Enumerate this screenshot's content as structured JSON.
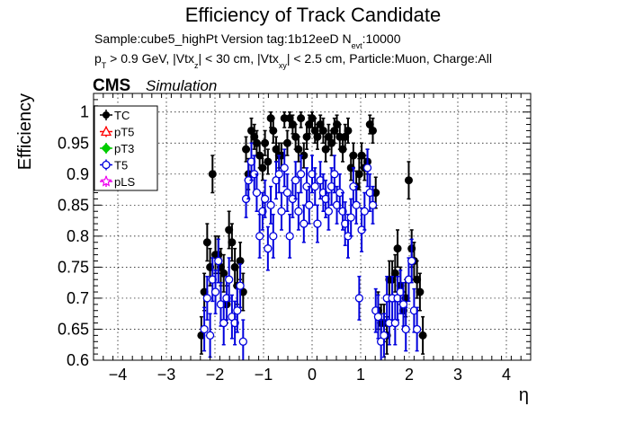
{
  "chart_data": {
    "type": "scatter",
    "title": "Efficiency of Track Candidate",
    "subtitle_line1": {
      "main": "Sample:cube5_highPt   Version tag:1b12eeD  N",
      "sub": "evt",
      "after": ":10000"
    },
    "subtitle_line2": {
      "p": "p",
      "p_sub": "T",
      "a": " > 0.9 GeV, |Vtx",
      "z_sub": "z",
      "b": "| < 30 cm, |Vtx",
      "xy_sub": "xy",
      "c": "| < 2.5 cm, Particle:Muon, Charge:All"
    },
    "cms_label": "CMS",
    "cms_sublabel": "Simulation",
    "xlabel": "η",
    "ylabel": "Efficiency",
    "xlim": [
      -4.5,
      4.5
    ],
    "ylim": [
      0.6,
      1.03
    ],
    "xticks": [
      -4,
      -3,
      -2,
      -1,
      0,
      1,
      2,
      3,
      4
    ],
    "yticks": [
      0.6,
      0.65,
      0.7,
      0.75,
      0.8,
      0.85,
      0.9,
      0.95,
      1
    ],
    "ytick_labels": [
      "0.6",
      "0.65",
      "0.7",
      "0.75",
      "0.8",
      "0.85",
      "0.9",
      "0.95",
      "1"
    ],
    "grid": true,
    "legend_position": "top-left",
    "series": [
      {
        "name": "TC",
        "color": "#000000",
        "marker": "filled-circle",
        "points": [
          [
            -2.28,
            0.64,
            0.03
          ],
          [
            -2.22,
            0.71,
            0.03
          ],
          [
            -2.16,
            0.79,
            0.03
          ],
          [
            -2.1,
            0.75,
            0.03
          ],
          [
            -2.05,
            0.9,
            0.03
          ],
          [
            -1.99,
            0.77,
            0.03
          ],
          [
            -1.93,
            0.77,
            0.03
          ],
          [
            -1.88,
            0.75,
            0.03
          ],
          [
            -1.82,
            0.74,
            0.03
          ],
          [
            -1.76,
            0.69,
            0.03
          ],
          [
            -1.71,
            0.81,
            0.03
          ],
          [
            -1.65,
            0.79,
            0.03
          ],
          [
            -1.59,
            0.75,
            0.03
          ],
          [
            -1.54,
            0.72,
            0.03
          ],
          [
            -1.48,
            0.76,
            0.03
          ],
          [
            -1.42,
            0.71,
            0.03
          ],
          [
            -1.36,
            0.94,
            0.02
          ],
          [
            -1.31,
            0.9,
            0.025
          ],
          [
            -1.25,
            0.97,
            0.02
          ],
          [
            -1.19,
            0.96,
            0.02
          ],
          [
            -1.14,
            0.95,
            0.02
          ],
          [
            -1.08,
            0.93,
            0.02
          ],
          [
            -1.02,
            0.91,
            0.02
          ],
          [
            -0.97,
            0.95,
            0.02
          ],
          [
            -0.91,
            0.92,
            0.02
          ],
          [
            -0.85,
            0.99,
            0.015
          ],
          [
            -0.8,
            0.97,
            0.02
          ],
          [
            -0.74,
            0.94,
            0.02
          ],
          [
            -0.68,
            0.93,
            0.02
          ],
          [
            -0.63,
            0.93,
            0.02
          ],
          [
            -0.57,
            0.99,
            0.015
          ],
          [
            -0.51,
            0.95,
            0.02
          ],
          [
            -0.46,
            0.99,
            0.015
          ],
          [
            -0.4,
            0.98,
            0.015
          ],
          [
            -0.34,
            0.96,
            0.02
          ],
          [
            -0.28,
            0.94,
            0.02
          ],
          [
            -0.23,
            0.99,
            0.015
          ],
          [
            -0.17,
            0.93,
            0.02
          ],
          [
            -0.11,
            0.96,
            0.02
          ],
          [
            -0.06,
            0.98,
            0.015
          ],
          [
            0.0,
            0.99,
            0.015
          ],
          [
            0.06,
            0.97,
            0.02
          ],
          [
            0.11,
            0.96,
            0.02
          ],
          [
            0.17,
            0.98,
            0.015
          ],
          [
            0.23,
            0.97,
            0.02
          ],
          [
            0.28,
            0.94,
            0.02
          ],
          [
            0.34,
            0.96,
            0.02
          ],
          [
            0.4,
            0.95,
            0.02
          ],
          [
            0.46,
            0.97,
            0.02
          ],
          [
            0.51,
            0.98,
            0.015
          ],
          [
            0.57,
            0.96,
            0.02
          ],
          [
            0.63,
            0.94,
            0.02
          ],
          [
            0.68,
            0.96,
            0.02
          ],
          [
            0.74,
            0.97,
            0.02
          ],
          [
            0.8,
            0.91,
            0.02
          ],
          [
            0.85,
            0.93,
            0.02
          ],
          [
            0.91,
            0.88,
            0.025
          ],
          [
            0.97,
            0.9,
            0.025
          ],
          [
            1.02,
            0.93,
            0.02
          ],
          [
            1.08,
            0.91,
            0.02
          ],
          [
            1.14,
            0.92,
            0.02
          ],
          [
            1.19,
            0.98,
            0.015
          ],
          [
            1.25,
            0.97,
            0.02
          ],
          [
            1.31,
            0.87,
            0.025
          ],
          [
            1.36,
            0.68,
            0.03
          ],
          [
            1.42,
            0.66,
            0.03
          ],
          [
            1.48,
            0.66,
            0.03
          ],
          [
            1.54,
            0.64,
            0.03
          ],
          [
            1.59,
            0.73,
            0.03
          ],
          [
            1.65,
            0.73,
            0.03
          ],
          [
            1.71,
            0.74,
            0.03
          ],
          [
            1.76,
            0.78,
            0.03
          ],
          [
            1.82,
            0.72,
            0.03
          ],
          [
            1.88,
            0.68,
            0.03
          ],
          [
            1.93,
            0.7,
            0.03
          ],
          [
            1.99,
            0.89,
            0.03
          ],
          [
            2.05,
            0.78,
            0.03
          ],
          [
            2.1,
            0.76,
            0.03
          ],
          [
            2.16,
            0.73,
            0.03
          ],
          [
            2.22,
            0.71,
            0.03
          ],
          [
            2.28,
            0.64,
            0.03
          ]
        ]
      },
      {
        "name": "pT5",
        "color": "#ff0000",
        "marker": "open-triangle",
        "points": []
      },
      {
        "name": "pT3",
        "color": "#00cc00",
        "marker": "filled-diamond",
        "points": []
      },
      {
        "name": "T5",
        "color": "#0000dd",
        "marker": "open-circle",
        "points": [
          [
            -2.22,
            0.65,
            0.035
          ],
          [
            -2.16,
            0.7,
            0.035
          ],
          [
            -2.1,
            0.64,
            0.035
          ],
          [
            -2.05,
            0.73,
            0.035
          ],
          [
            -1.99,
            0.71,
            0.035
          ],
          [
            -1.93,
            0.76,
            0.035
          ],
          [
            -1.88,
            0.69,
            0.035
          ],
          [
            -1.82,
            0.66,
            0.035
          ],
          [
            -1.76,
            0.7,
            0.035
          ],
          [
            -1.71,
            0.73,
            0.035
          ],
          [
            -1.65,
            0.67,
            0.035
          ],
          [
            -1.59,
            0.66,
            0.035
          ],
          [
            -1.54,
            0.68,
            0.035
          ],
          [
            -1.48,
            0.72,
            0.035
          ],
          [
            -1.42,
            0.63,
            0.035
          ],
          [
            -1.36,
            0.86,
            0.03
          ],
          [
            -1.31,
            0.89,
            0.03
          ],
          [
            -1.25,
            0.92,
            0.03
          ],
          [
            -1.19,
            0.9,
            0.03
          ],
          [
            -1.14,
            0.87,
            0.03
          ],
          [
            -1.08,
            0.8,
            0.035
          ],
          [
            -1.02,
            0.84,
            0.03
          ],
          [
            -0.97,
            0.86,
            0.03
          ],
          [
            -0.91,
            0.78,
            0.035
          ],
          [
            -0.85,
            0.85,
            0.03
          ],
          [
            -0.8,
            0.8,
            0.035
          ],
          [
            -0.74,
            0.89,
            0.03
          ],
          [
            -0.68,
            0.9,
            0.03
          ],
          [
            -0.63,
            0.84,
            0.03
          ],
          [
            -0.57,
            0.91,
            0.03
          ],
          [
            -0.51,
            0.87,
            0.03
          ],
          [
            -0.46,
            0.8,
            0.035
          ],
          [
            -0.4,
            0.86,
            0.03
          ],
          [
            -0.34,
            0.89,
            0.03
          ],
          [
            -0.28,
            0.84,
            0.03
          ],
          [
            -0.23,
            0.9,
            0.03
          ],
          [
            -0.17,
            0.82,
            0.03
          ],
          [
            -0.11,
            0.88,
            0.03
          ],
          [
            -0.06,
            0.85,
            0.03
          ],
          [
            0.0,
            0.9,
            0.03
          ],
          [
            0.06,
            0.88,
            0.03
          ],
          [
            0.11,
            0.82,
            0.03
          ],
          [
            0.17,
            0.89,
            0.03
          ],
          [
            0.23,
            0.87,
            0.03
          ],
          [
            0.28,
            0.86,
            0.03
          ],
          [
            0.34,
            0.84,
            0.03
          ],
          [
            0.4,
            0.88,
            0.03
          ],
          [
            0.46,
            0.9,
            0.03
          ],
          [
            0.51,
            0.85,
            0.03
          ],
          [
            0.57,
            0.87,
            0.03
          ],
          [
            0.63,
            0.84,
            0.03
          ],
          [
            0.68,
            0.82,
            0.035
          ],
          [
            0.74,
            0.8,
            0.035
          ],
          [
            0.8,
            0.83,
            0.03
          ],
          [
            0.85,
            0.88,
            0.03
          ],
          [
            0.91,
            0.85,
            0.03
          ],
          [
            0.97,
            0.7,
            0.035
          ],
          [
            1.02,
            0.81,
            0.035
          ],
          [
            1.08,
            0.84,
            0.03
          ],
          [
            1.14,
            0.91,
            0.03
          ],
          [
            1.19,
            0.87,
            0.03
          ],
          [
            1.25,
            0.85,
            0.03
          ],
          [
            1.31,
            0.68,
            0.035
          ],
          [
            1.36,
            0.67,
            0.035
          ],
          [
            1.42,
            0.63,
            0.035
          ],
          [
            1.48,
            0.64,
            0.035
          ],
          [
            1.54,
            0.7,
            0.035
          ],
          [
            1.59,
            0.66,
            0.035
          ],
          [
            1.65,
            0.7,
            0.035
          ],
          [
            1.71,
            0.66,
            0.035
          ],
          [
            1.76,
            0.7,
            0.035
          ],
          [
            1.82,
            0.71,
            0.035
          ],
          [
            1.88,
            0.69,
            0.035
          ],
          [
            1.93,
            0.65,
            0.035
          ],
          [
            1.99,
            0.73,
            0.035
          ],
          [
            2.05,
            0.76,
            0.035
          ],
          [
            2.1,
            0.68,
            0.035
          ],
          [
            2.16,
            0.65,
            0.035
          ]
        ]
      },
      {
        "name": "pLS",
        "color": "#ee00ee",
        "marker": "open-star",
        "points": []
      }
    ]
  }
}
